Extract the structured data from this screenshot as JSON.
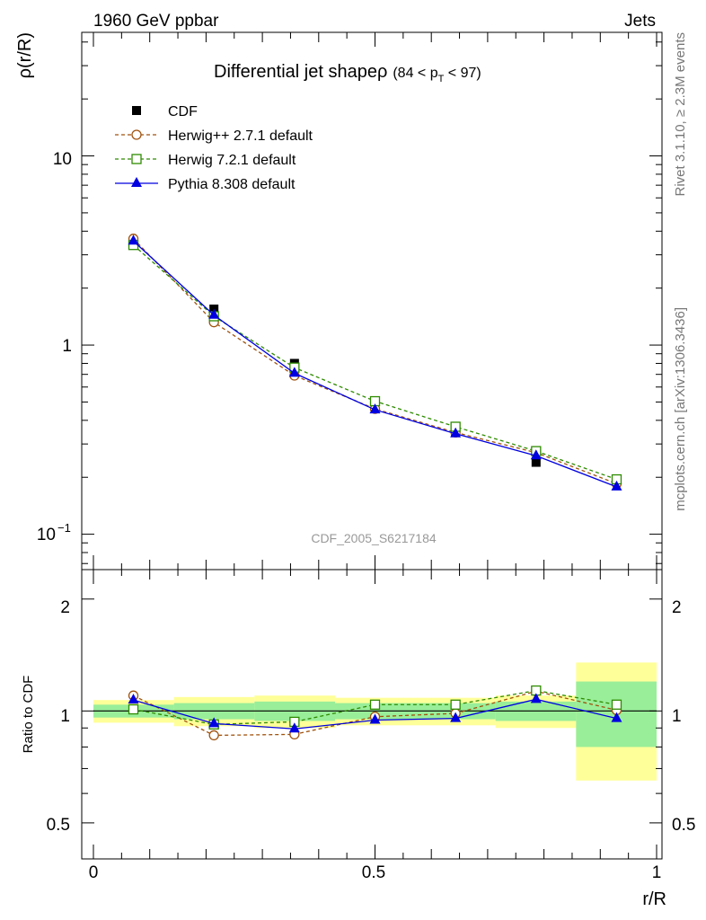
{
  "header": {
    "left": "1960 GeV ppbar",
    "right": "Jets"
  },
  "side": {
    "rivet": "Rivet 3.1.10, ≥ 2.3M events",
    "mcplots": "mcplots.cern.ch [arXiv:1306.3436]"
  },
  "main": {
    "title": "Differential jet shapeρ",
    "title_cut_pre": "(84 < p",
    "title_cut_sub": "T",
    "title_cut_post": " < 97)",
    "ylabel": "ρ(r/R)",
    "watermark": "CDF_2005_S6217184",
    "ytick_10": "10",
    "ytick_1": "1",
    "ytick_01_base": "10",
    "ytick_01_exp": "−1"
  },
  "ratio": {
    "ylabel": "Ratio to CDF",
    "ytick_2": "2",
    "ytick_1": "1",
    "ytick_05": "0.5",
    "xlabel": "r/R",
    "xtick_0": "0",
    "xtick_05": "0.5",
    "xtick_1": "1"
  },
  "colors": {
    "herwigpp": "#a0520d",
    "herwig7": "#2e8b00",
    "pythia": "#0000e0",
    "band_inner": "#99ee99",
    "band_outer": "#ffff99"
  },
  "chart_data": {
    "type": "line",
    "title": "Differential jet shapeρ (84 < p_T < 97)",
    "xlabel": "r/R",
    "ylabel": "ρ(r/R)",
    "xlim": [
      0,
      1
    ],
    "ylim": [
      0.065,
      45
    ],
    "yscale": "log",
    "legend_position": "top-left",
    "x": [
      0.071,
      0.214,
      0.357,
      0.5,
      0.643,
      0.786,
      0.929
    ],
    "series": [
      {
        "name": "CDF",
        "style": "square-filled",
        "values": [
          3.4,
          1.55,
          0.8,
          0.48,
          0.35,
          0.24,
          0.19
        ]
      },
      {
        "name": "Herwig++ 2.7.1 default",
        "style": "circle-open-dashed",
        "values": [
          3.65,
          1.32,
          0.69,
          0.46,
          0.345,
          0.27,
          0.185
        ]
      },
      {
        "name": "Herwig 7.2.1 default",
        "style": "square-open-dashed",
        "values": [
          3.38,
          1.42,
          0.76,
          0.505,
          0.37,
          0.275,
          0.195
        ]
      },
      {
        "name": "Pythia 8.308 default",
        "style": "triangle-filled-solid",
        "values": [
          3.55,
          1.44,
          0.71,
          0.455,
          0.34,
          0.26,
          0.178
        ]
      }
    ],
    "ratio": {
      "ylabel": "Ratio to CDF",
      "ylim": [
        0.4,
        2.4
      ],
      "yscale": "log",
      "x": [
        0.071,
        0.214,
        0.357,
        0.5,
        0.643,
        0.786,
        0.929
      ],
      "series": [
        {
          "name": "Herwig++ 2.7.1 default",
          "values": [
            1.1,
            0.86,
            0.865,
            0.965,
            0.985,
            1.13,
            1.005
          ]
        },
        {
          "name": "Herwig 7.2.1 default",
          "values": [
            1.01,
            0.92,
            0.935,
            1.04,
            1.04,
            1.135,
            1.04
          ]
        },
        {
          "name": "Pythia 8.308 default",
          "values": [
            1.07,
            0.925,
            0.895,
            0.945,
            0.955,
            1.075,
            0.955
          ]
        }
      ],
      "bands": {
        "bin_edges": [
          0,
          0.143,
          0.286,
          0.429,
          0.571,
          0.714,
          0.857,
          1.0
        ],
        "inner_halfwidth": [
          0.04,
          0.05,
          0.06,
          0.05,
          0.05,
          0.06,
          0.2
        ],
        "outer_halfwidth": [
          0.07,
          0.09,
          0.1,
          0.085,
          0.085,
          0.1,
          0.35
        ]
      }
    }
  }
}
